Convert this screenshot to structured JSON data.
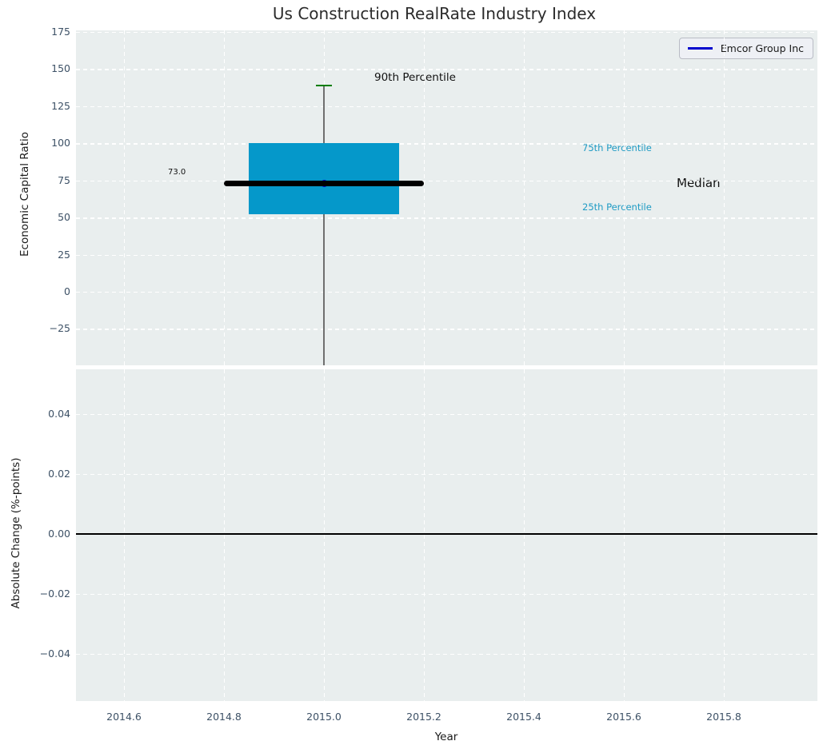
{
  "title": "Us Construction RealRate Industry Index",
  "legend": {
    "label": "Emcor Group Inc"
  },
  "top_plot": {
    "ylabel": "Economic Capital Ratio",
    "ytick_labels": [
      "175",
      "150",
      "125",
      "100",
      "75",
      "50",
      "25",
      "0",
      "−25"
    ],
    "ytick_values": [
      175,
      150,
      125,
      100,
      75,
      50,
      25,
      0,
      -25
    ],
    "annotations": {
      "p90": "90th Percentile",
      "p75": "75th Percentile",
      "median": "Median",
      "p25": "25th Percentile",
      "median_value": "73.0"
    }
  },
  "bottom_plot": {
    "ylabel": "Absolute Change (%-points)",
    "ytick_labels": [
      "0.04",
      "0.02",
      "0.00",
      "−0.02",
      "−0.04"
    ],
    "ytick_values": [
      0.04,
      0.02,
      0,
      -0.02,
      -0.04
    ]
  },
  "x_axis": {
    "label": "Year",
    "tick_labels": [
      "2014.6",
      "2014.8",
      "2015.0",
      "2015.2",
      "2015.4",
      "2015.6",
      "2015.8"
    ],
    "tick_values": [
      2014.6,
      2014.8,
      2015.0,
      2015.2,
      2015.4,
      2015.6,
      2015.8
    ]
  },
  "colors": {
    "box_fill": "#0598ca",
    "median_line": "#000000",
    "whisker": "#6f6f6f",
    "p90_cap": "#007d00",
    "company_marker": "#0000cd",
    "legend_line": "#0000cd",
    "percentile_text": "#1f9bc4",
    "tick_text": "#3d5166",
    "plot_background": "#e9eeee",
    "zero_line": "#000000"
  },
  "chart_data": [
    {
      "type": "boxplot",
      "subplot": "top",
      "title": "Us Construction RealRate Industry Index",
      "xlabel": "Year",
      "ylabel": "Economic Capital Ratio",
      "x": 2015.0,
      "box": {
        "q1": 52,
        "median": 73.0,
        "q3": 100,
        "p90": 139,
        "x_left": 2014.85,
        "x_right": 2015.15,
        "median_x_left": 2014.8,
        "median_x_right": 2015.2,
        "whisker_low": "extends below visible axis (clipped at plot bottom)"
      },
      "series": [
        {
          "name": "Emcor Group Inc",
          "x": [
            2015.0
          ],
          "y": [
            73.0
          ]
        }
      ],
      "annotations": [
        "90th Percentile",
        "75th Percentile",
        "Median",
        "25th Percentile",
        "73.0"
      ],
      "ylim": [
        -49.5,
        176
      ],
      "xlim": [
        2014.5,
        2015.99
      ],
      "yticks": [
        175,
        150,
        125,
        100,
        75,
        50,
        25,
        0,
        -25
      ],
      "xticks": [
        2014.6,
        2014.8,
        2015.0,
        2015.2,
        2015.4,
        2015.6,
        2015.8
      ],
      "legend": {
        "position": "upper right",
        "entries": [
          "Emcor Group Inc"
        ]
      },
      "grid": true
    },
    {
      "type": "line",
      "subplot": "bottom",
      "xlabel": "Year",
      "ylabel": "Absolute Change (%-points)",
      "series": [],
      "zero_line_y": 0.0,
      "ylim": [
        -0.0557,
        0.0549
      ],
      "yticks": [
        0.04,
        0.02,
        0,
        -0.02,
        -0.04
      ],
      "xticks": [
        2014.6,
        2014.8,
        2015.0,
        2015.2,
        2015.4,
        2015.6,
        2015.8
      ],
      "grid": true
    }
  ]
}
